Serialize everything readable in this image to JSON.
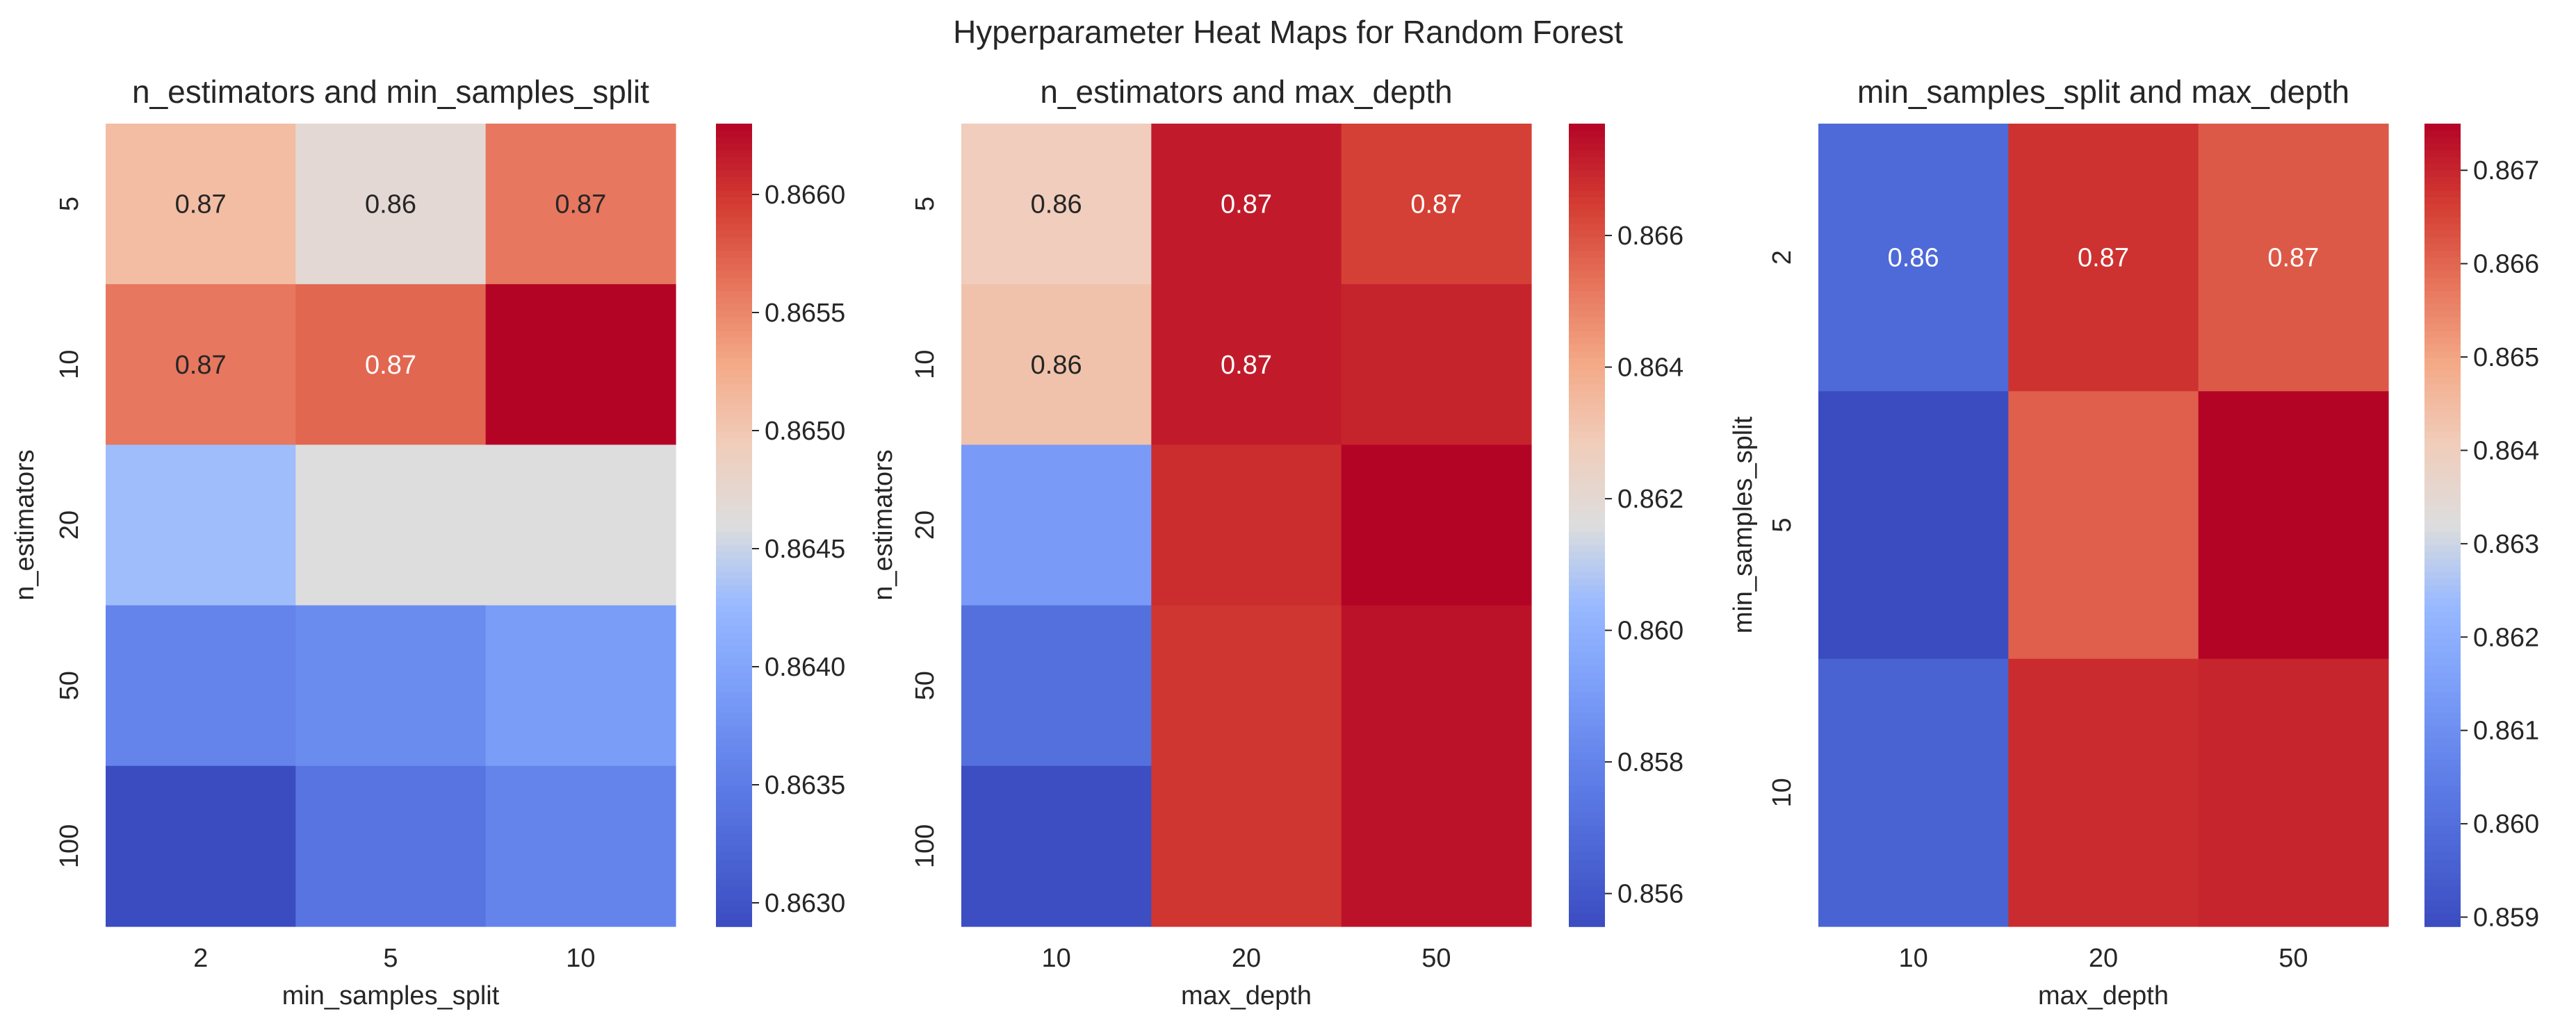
{
  "figure": {
    "title": "Hyperparameter Heat Maps for Random Forest",
    "colormap": "coolwarm"
  },
  "chart_data": [
    {
      "type": "heatmap",
      "title": "n_estimators and min_samples_split",
      "xlabel": "min_samples_split",
      "ylabel": "n_estimators",
      "x_categories": [
        "2",
        "5",
        "10"
      ],
      "y_categories": [
        "5",
        "10",
        "20",
        "50",
        "100"
      ],
      "values": [
        [
          0.8651,
          0.8647,
          0.8656
        ],
        [
          0.8656,
          0.8657,
          0.8663
        ],
        [
          0.8643,
          0.8646,
          0.8646
        ],
        [
          0.8636,
          0.8637,
          0.8639
        ],
        [
          0.8629,
          0.8634,
          0.8636
        ]
      ],
      "annotations": [
        [
          "0.87",
          "0.86",
          "0.87"
        ],
        [
          "0.87",
          "0.87",
          ""
        ],
        [
          "",
          "",
          ""
        ],
        [
          "",
          "",
          ""
        ],
        [
          "",
          "",
          ""
        ]
      ],
      "vmin": 0.8629,
      "vmax": 0.8663,
      "colorbar_ticks": [
        0.863,
        0.8635,
        0.864,
        0.8645,
        0.865,
        0.8655,
        0.866
      ],
      "colorbar_tick_labels": [
        "0.8630",
        "0.8635",
        "0.8640",
        "0.8645",
        "0.8650",
        "0.8655",
        "0.8660"
      ]
    },
    {
      "type": "heatmap",
      "title": "n_estimators and max_depth",
      "xlabel": "max_depth",
      "ylabel": "n_estimators",
      "x_categories": [
        "10",
        "20",
        "50"
      ],
      "y_categories": [
        "5",
        "10",
        "20",
        "50",
        "100"
      ],
      "values": [
        [
          0.8628,
          0.8672,
          0.8664
        ],
        [
          0.8632,
          0.8672,
          0.867
        ],
        [
          0.859,
          0.8668,
          0.8677
        ],
        [
          0.8571,
          0.8666,
          0.8674
        ],
        [
          0.8556,
          0.8666,
          0.8674
        ]
      ],
      "annotations": [
        [
          "0.86",
          "0.87",
          "0.87"
        ],
        [
          "0.86",
          "0.87",
          ""
        ],
        [
          "",
          "",
          ""
        ],
        [
          "",
          "",
          ""
        ],
        [
          "",
          "",
          ""
        ]
      ],
      "vmin": 0.8555,
      "vmax": 0.8677,
      "colorbar_ticks": [
        0.856,
        0.858,
        0.86,
        0.862,
        0.864,
        0.866
      ],
      "colorbar_tick_labels": [
        "0.856",
        "0.858",
        "0.860",
        "0.862",
        "0.864",
        "0.866"
      ]
    },
    {
      "type": "heatmap",
      "title": "min_samples_split and max_depth",
      "xlabel": "max_depth",
      "ylabel": "min_samples_split",
      "x_categories": [
        "10",
        "20",
        "50"
      ],
      "y_categories": [
        "2",
        "5",
        "10"
      ],
      "values": [
        [
          0.8598,
          0.8668,
          0.8662
        ],
        [
          0.8589,
          0.8661,
          0.8675
        ],
        [
          0.8596,
          0.8669,
          0.867
        ]
      ],
      "annotations": [
        [
          "0.86",
          "0.87",
          "0.87"
        ],
        [
          "",
          "",
          ""
        ],
        [
          "",
          "",
          ""
        ]
      ],
      "vmin": 0.8589,
      "vmax": 0.8675,
      "colorbar_ticks": [
        0.859,
        0.86,
        0.861,
        0.862,
        0.863,
        0.864,
        0.865,
        0.866,
        0.867
      ],
      "colorbar_tick_labels": [
        "0.859",
        "0.860",
        "0.861",
        "0.862",
        "0.863",
        "0.864",
        "0.865",
        "0.866",
        "0.867"
      ]
    }
  ]
}
